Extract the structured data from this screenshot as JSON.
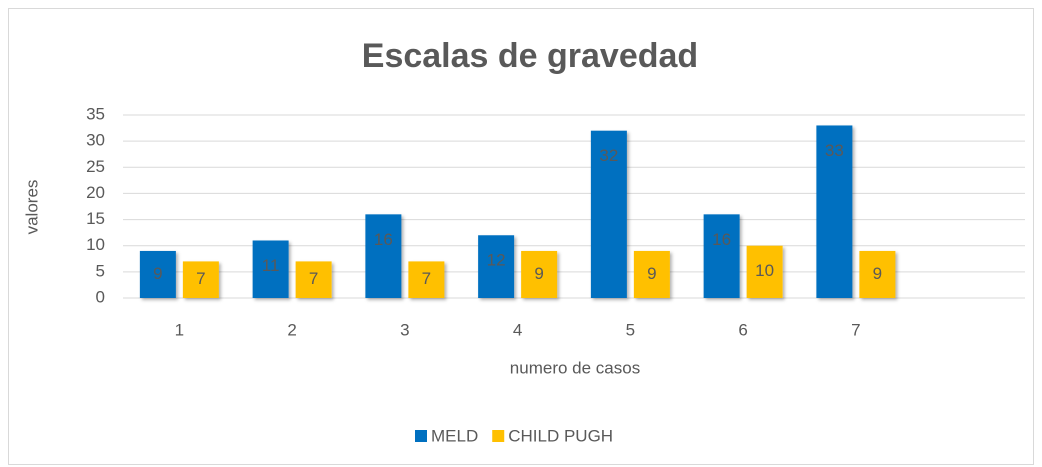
{
  "chart_data": {
    "type": "bar",
    "title": "Escalas de gravedad",
    "x_label": "numero de casos",
    "y_label": "valores",
    "categories": [
      "1",
      "2",
      "3",
      "4",
      "5",
      "6",
      "7",
      null
    ],
    "series": [
      {
        "name": "MELD",
        "color": "#0070c0",
        "values": [
          9,
          11,
          16,
          12,
          32,
          16,
          33,
          null
        ]
      },
      {
        "name": "CHILD PUGH",
        "color": "#ffc000",
        "values": [
          7,
          7,
          7,
          9,
          9,
          10,
          9,
          null
        ]
      }
    ],
    "ylim": [
      0,
      35
    ],
    "yticks": [
      0,
      5,
      10,
      15,
      20,
      25,
      30,
      35
    ],
    "grid": true,
    "legend": "bottom"
  }
}
